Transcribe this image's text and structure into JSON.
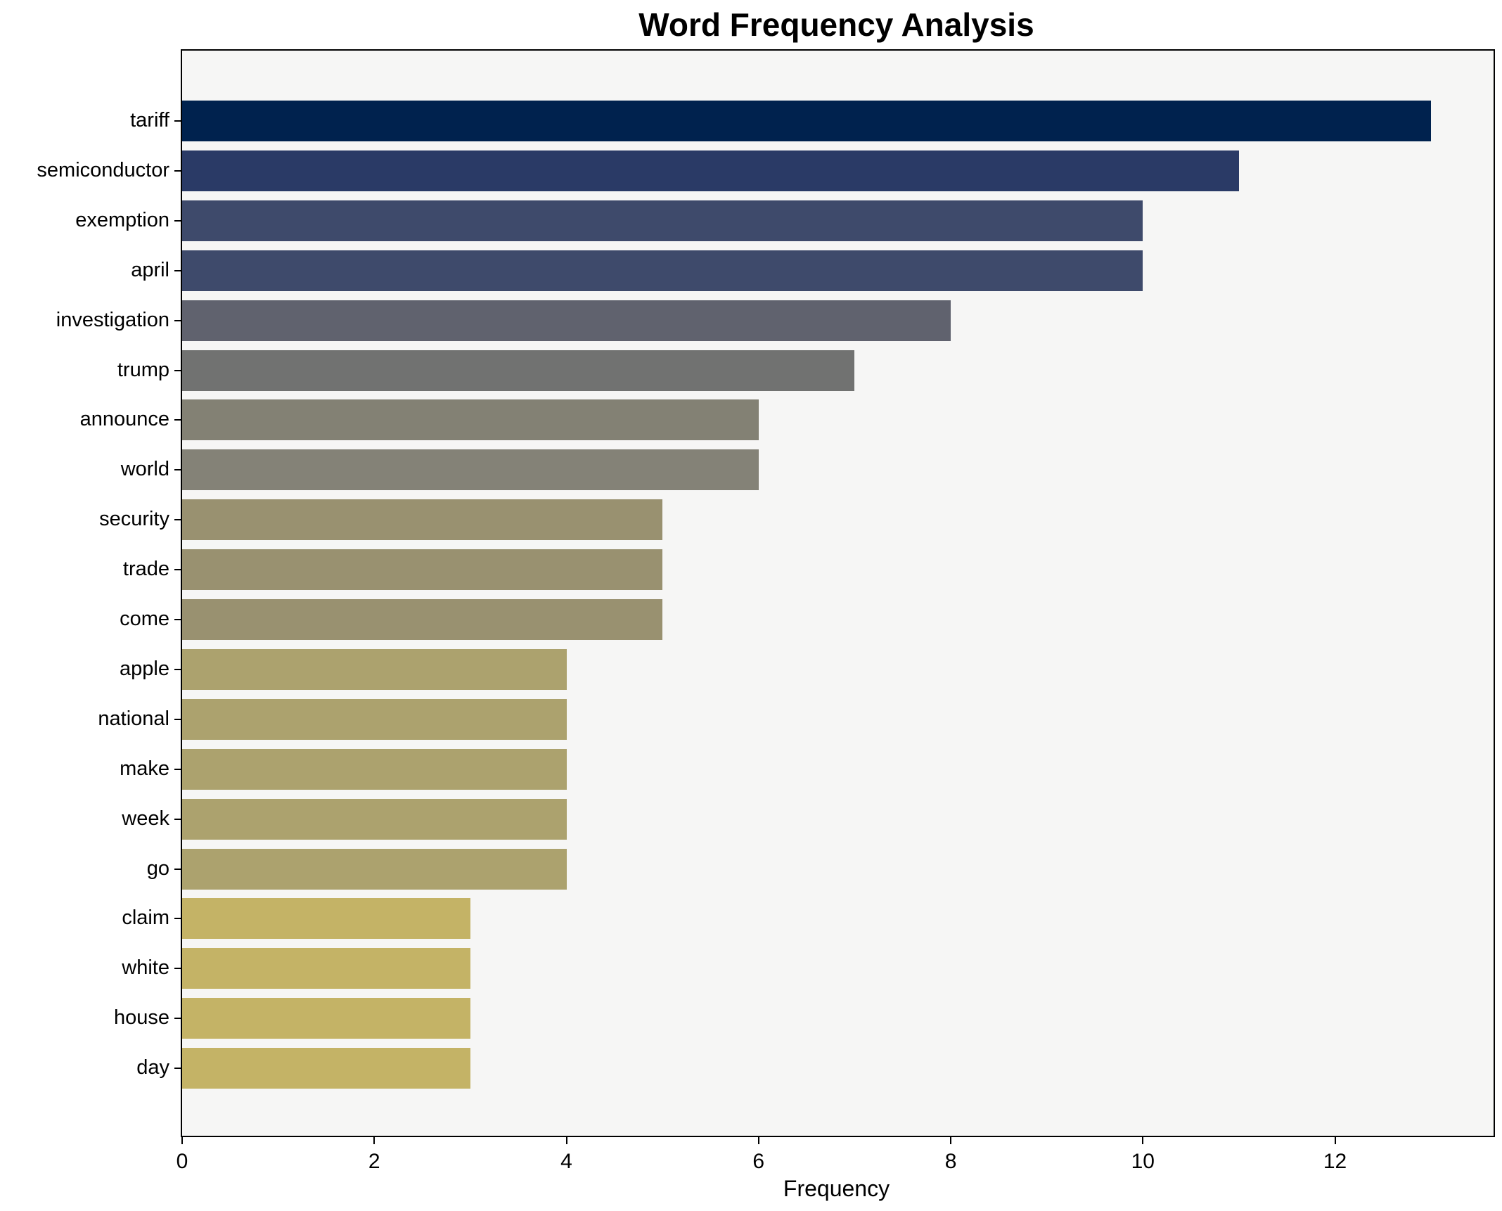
{
  "chart_data": {
    "type": "bar",
    "orientation": "horizontal",
    "title": "Word Frequency Analysis",
    "xlabel": "Frequency",
    "ylabel": "",
    "categories": [
      "tariff",
      "semiconductor",
      "exemption",
      "april",
      "investigation",
      "trump",
      "announce",
      "world",
      "security",
      "trade",
      "come",
      "apple",
      "national",
      "make",
      "week",
      "go",
      "claim",
      "white",
      "house",
      "day"
    ],
    "values": [
      13,
      11,
      10,
      10,
      8,
      7,
      6,
      6,
      5,
      5,
      5,
      4,
      4,
      4,
      4,
      4,
      3,
      3,
      3,
      3
    ],
    "bar_colors": [
      "#00224E",
      "#2A3A66",
      "#3E4A6B",
      "#3E4A6B",
      "#60626E",
      "#717271",
      "#838174",
      "#848277",
      "#999170",
      "#999170",
      "#999170",
      "#ACA26E",
      "#ACA26E",
      "#ACA26E",
      "#ACA26E",
      "#ACA26E",
      "#C4B366",
      "#C4B366",
      "#C4B366",
      "#C4B366"
    ],
    "xticks": [
      0,
      2,
      4,
      6,
      8,
      10,
      12
    ],
    "xlim": [
      0,
      13.65
    ],
    "grid": false,
    "legend": null,
    "colormap": "cividis",
    "plot_bg": "#f6f6f5",
    "figure_bg": "#ffffff",
    "spine_color": "#000000"
  }
}
